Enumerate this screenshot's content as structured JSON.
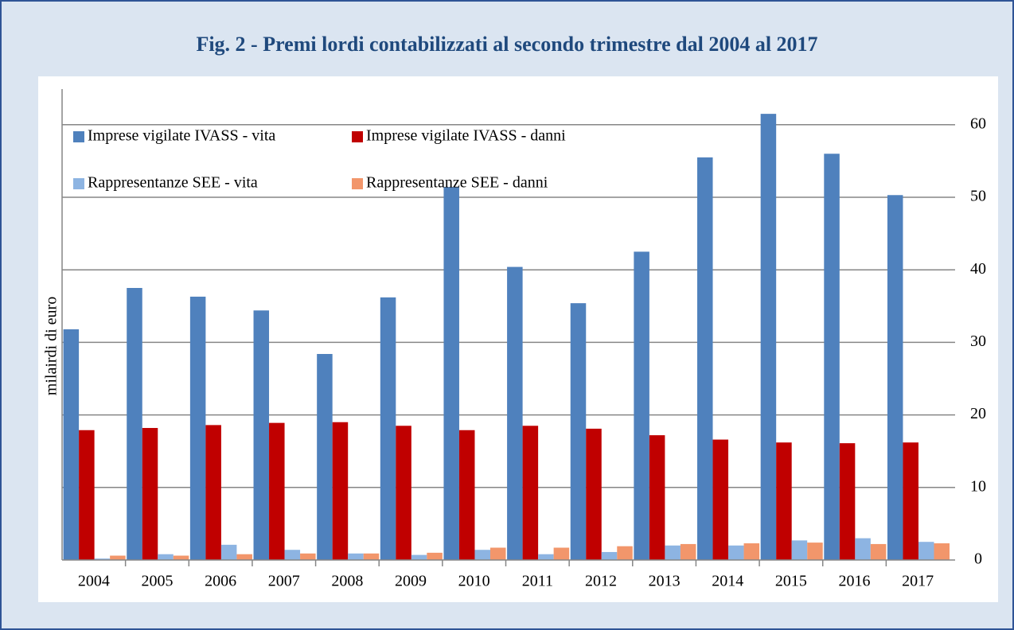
{
  "chart_data": {
    "type": "bar",
    "title": "Fig. 2 - Premi lordi contabilizzati al secondo trimestre dal 2004 al 2017",
    "y_label": "milairdi di euro",
    "categories": [
      "2004",
      "2005",
      "2006",
      "2007",
      "2008",
      "2009",
      "2010",
      "2011",
      "2012",
      "2013",
      "2014",
      "2015",
      "2016",
      "2017"
    ],
    "series": [
      {
        "name": "Imprese vigilate IVASS - vita",
        "color": "#4f81bd",
        "values": [
          31.8,
          37.5,
          36.3,
          34.4,
          28.4,
          36.2,
          51.4,
          40.4,
          35.4,
          42.5,
          55.5,
          61.5,
          56.0,
          50.3
        ]
      },
      {
        "name": "Imprese vigilate IVASS - danni",
        "color": "#c00000",
        "values": [
          17.9,
          18.2,
          18.6,
          18.9,
          19.0,
          18.5,
          17.9,
          18.5,
          18.1,
          17.2,
          16.6,
          16.2,
          16.1,
          16.2
        ]
      },
      {
        "name": "Rappresentanze SEE - vita",
        "color": "#8db4e2",
        "values": [
          0.2,
          0.8,
          2.1,
          1.4,
          0.9,
          0.7,
          1.4,
          0.8,
          1.1,
          2.0,
          2.0,
          2.7,
          3.0,
          2.5
        ]
      },
      {
        "name": "Rappresentanze SEE - danni",
        "color": "#f2966b",
        "values": [
          0.6,
          0.6,
          0.8,
          0.9,
          0.9,
          1.0,
          1.7,
          1.7,
          1.9,
          2.2,
          2.3,
          2.4,
          2.2,
          2.3
        ]
      }
    ],
    "ylim": [
      0,
      65
    ],
    "yticks": [
      0,
      10,
      20,
      30,
      40,
      50,
      60
    ],
    "y_axis_side": "right",
    "grid": true,
    "legend_position": "top-left"
  }
}
